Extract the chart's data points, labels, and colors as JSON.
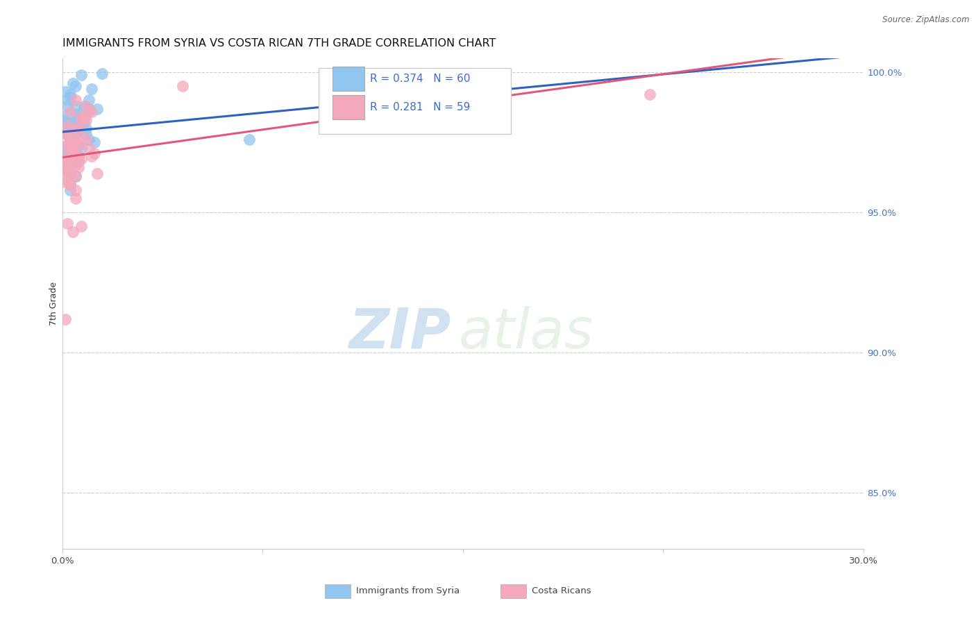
{
  "title": "IMMIGRANTS FROM SYRIA VS COSTA RICAN 7TH GRADE CORRELATION CHART",
  "source": "Source: ZipAtlas.com",
  "ylabel": "7th Grade",
  "legend_blue_r": "R = 0.374",
  "legend_blue_n": "N = 60",
  "legend_pink_r": "R = 0.281",
  "legend_pink_n": "N = 59",
  "legend_label_blue": "Immigrants from Syria",
  "legend_label_pink": "Costa Ricans",
  "blue_color": "#92C5F0",
  "pink_color": "#F4A8BC",
  "blue_line_color": "#3060C0",
  "pink_line_color": "#E05878",
  "blue_scatter_x": [
    0.2,
    0.3,
    0.5,
    0.2,
    0.8,
    0.4,
    0.6,
    1.0,
    0.2,
    0.4,
    0.6,
    0.8,
    0.2,
    0.4,
    0.6,
    1.0,
    1.2,
    0.4,
    0.2,
    0.6,
    0.8,
    0.4,
    0.1,
    0.5,
    0.3,
    0.2,
    0.7,
    0.5,
    0.3,
    0.9,
    1.1,
    0.1,
    0.3,
    0.5,
    0.7,
    0.3,
    0.1,
    0.4,
    0.3,
    0.6,
    0.9,
    1.0,
    1.3,
    0.1,
    0.3,
    0.5,
    0.3,
    0.1,
    0.3,
    0.5,
    0.7,
    0.2,
    0.4,
    0.5,
    0.1,
    0.3,
    1.5,
    0.1,
    0.3,
    7.0
  ],
  "blue_scatter_y": [
    99.0,
    99.2,
    98.8,
    98.5,
    98.7,
    98.2,
    98.4,
    99.0,
    97.8,
    97.6,
    97.4,
    98.8,
    98.2,
    98.0,
    97.9,
    98.7,
    97.5,
    97.2,
    97.0,
    96.8,
    98.2,
    98.1,
    96.5,
    97.8,
    97.6,
    97.4,
    97.3,
    97.9,
    97.2,
    98.0,
    99.4,
    99.3,
    99.1,
    98.5,
    98.3,
    97.7,
    97.1,
    97.5,
    97.3,
    97.0,
    97.8,
    97.6,
    98.7,
    96.6,
    96.4,
    96.3,
    96.9,
    97.2,
    96.8,
    97.1,
    99.9,
    98.8,
    99.6,
    99.5,
    98.3,
    96.7,
    99.95,
    98.1,
    95.8,
    97.6
  ],
  "pink_scatter_x": [
    0.3,
    0.5,
    0.7,
    0.2,
    0.9,
    0.4,
    0.6,
    1.0,
    0.2,
    0.4,
    0.6,
    0.8,
    0.2,
    0.4,
    0.6,
    1.0,
    1.2,
    0.4,
    0.1,
    0.5,
    0.7,
    0.3,
    0.1,
    0.5,
    0.3,
    0.2,
    0.7,
    0.5,
    0.3,
    0.9,
    1.1,
    0.1,
    0.3,
    0.5,
    0.7,
    0.3,
    0.1,
    0.4,
    0.3,
    0.6,
    0.9,
    1.1,
    1.3,
    0.1,
    0.3,
    0.5,
    0.3,
    0.1,
    0.3,
    0.5,
    0.7,
    0.2,
    0.4,
    0.5,
    0.1,
    0.3,
    4.5,
    0.1,
    22.0
  ],
  "pink_scatter_y": [
    98.6,
    99.0,
    98.4,
    98.1,
    98.3,
    97.8,
    98.0,
    98.6,
    97.4,
    97.2,
    97.0,
    98.4,
    97.8,
    97.5,
    97.4,
    97.3,
    97.1,
    96.8,
    96.5,
    96.3,
    97.7,
    97.6,
    96.1,
    97.4,
    97.2,
    97.0,
    96.9,
    97.5,
    96.8,
    97.6,
    97.0,
    96.5,
    96.0,
    95.5,
    98.3,
    97.3,
    96.7,
    97.1,
    96.9,
    96.6,
    98.8,
    98.6,
    96.4,
    96.2,
    96.0,
    95.8,
    96.4,
    96.7,
    96.4,
    96.7,
    94.5,
    94.6,
    94.3,
    98.0,
    97.8,
    97.6,
    99.5,
    91.2,
    99.2
  ],
  "xlim": [
    0.0,
    30.0
  ],
  "ylim": [
    83.0,
    100.5
  ],
  "yticks": [
    85.0,
    90.0,
    95.0,
    100.0
  ],
  "ytick_labels": [
    "85.0%",
    "90.0%",
    "95.0%",
    "100.0%"
  ],
  "xtick_positions": [
    0.0,
    7.5,
    15.0,
    22.5,
    30.0
  ],
  "xtick_labels": [
    "0.0%",
    "",
    "",
    "",
    "30.0%"
  ],
  "watermark_zip": "ZIP",
  "watermark_atlas": "atlas",
  "title_fontsize": 11.5,
  "axis_label_fontsize": 9,
  "tick_fontsize": 9.5
}
